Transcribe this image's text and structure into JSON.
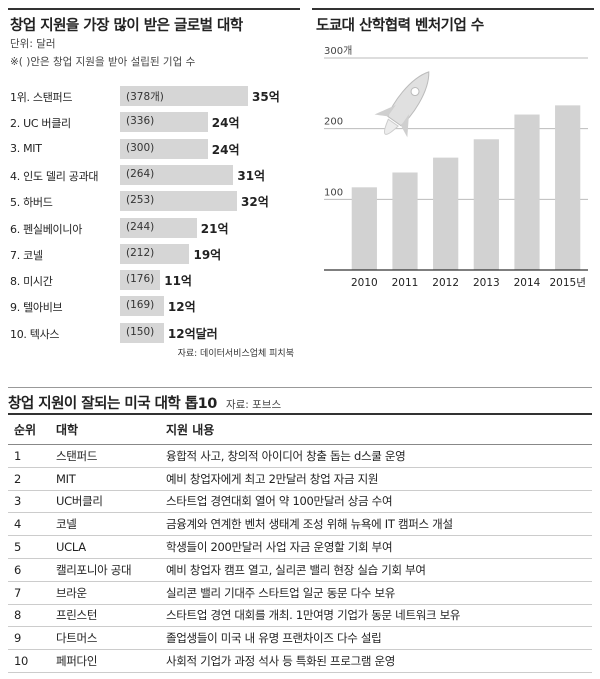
{
  "left_chart": {
    "title": "창업 지원을 가장 많이 받은 글로벌 대학",
    "unit": "단위: 달러",
    "note": "※( )안은 창업 지원을 받아 설립된 기업 수",
    "source": "자료: 데이터서비스업체 피치북",
    "colors": {
      "bar": "#d6d6d6"
    }
  },
  "right_chart": {
    "title": "도쿄대 산학협력 벤처기업 수",
    "colors": {
      "bar": "#d2d2d2",
      "grid": "#bbbbbb",
      "rocket": "#e0e0e0"
    }
  },
  "table": {
    "title": "창업 지원이 잘되는 미국 대학 톱10",
    "source": "자료: 포브스",
    "headers": [
      "순위",
      "대학",
      "지원 내용"
    ],
    "rows": [
      [
        "1",
        "스탠퍼드",
        "융합적 사고, 창의적 아이디어 창출 돕는 d스쿨 운영"
      ],
      [
        "2",
        "MIT",
        "예비 창업자에게 최고 2만달러 창업 자금 지원"
      ],
      [
        "3",
        "UC버클리",
        "스타트업 경연대회 열어 약 100만달러 상금 수여"
      ],
      [
        "4",
        "코넬",
        "금융계와 연계한 벤처 생태계 조성 위해 뉴욕에 IT 캠퍼스 개설"
      ],
      [
        "5",
        "UCLA",
        "학생들이 200만달러 사업 자금 운영할 기회 부여"
      ],
      [
        "6",
        "캘리포니아 공대",
        "예비 창업자 캠프 열고, 실리콘 밸리 현장 실습 기회 부여"
      ],
      [
        "7",
        "브라운",
        "실리콘 밸리 기대주 스타트업 일군 동문 다수 보유"
      ],
      [
        "8",
        "프린스턴",
        "스타트업 경연 대회를 개최. 1만여명 기업가 동문 네트워크 보유"
      ],
      [
        "9",
        "다트머스",
        "졸업생들이 미국 내 유명 프랜차이즈 다수 설립"
      ],
      [
        "10",
        "페퍼다인",
        "사회적 기업가 과정 석사 등 특화된 프로그램 운영"
      ]
    ]
  },
  "chart_data": [
    {
      "type": "bar",
      "orientation": "horizontal",
      "title": "창업 지원을 가장 많이 받은 글로벌 대학",
      "categories": [
        "1위. 스탠퍼드",
        "2. UC 버클리",
        "3. MIT",
        "4. 인도 델리 공과대",
        "5. 하버드",
        "6. 펜실베이니아",
        "7. 코넬",
        "8. 미시간",
        "9. 텔아비브",
        "10. 텍사스"
      ],
      "values": [
        35,
        24,
        24,
        31,
        32,
        21,
        19,
        11,
        12,
        12
      ],
      "value_labels": [
        "35억",
        "24억",
        "24억",
        "31억",
        "32억",
        "21억",
        "19억",
        "11억",
        "12억",
        "12억달러"
      ],
      "counts": [
        "(378개)",
        "(336)",
        "(300)",
        "(264)",
        "(253)",
        "(244)",
        "(212)",
        "(176)",
        "(169)",
        "(150)"
      ],
      "xlim": [
        0,
        35
      ]
    },
    {
      "type": "bar",
      "title": "도쿄대 산학협력 벤처기업 수",
      "categories": [
        "2010",
        "2011",
        "2012",
        "2013",
        "2014",
        "2015년"
      ],
      "values": [
        117,
        138,
        159,
        185,
        220,
        233
      ],
      "ylim": [
        0,
        300
      ],
      "yticks": [
        100,
        200
      ],
      "ytick_top_label": "300개",
      "grid": true
    }
  ]
}
